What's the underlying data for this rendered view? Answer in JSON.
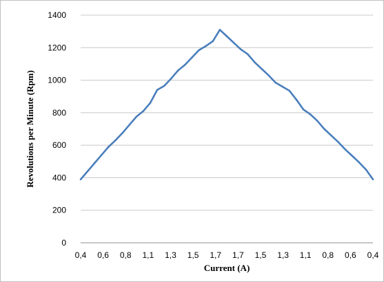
{
  "chart_data": {
    "type": "line",
    "xlabel": "Current (A)",
    "ylabel": "Revolutions per Minute (Rpm)",
    "ylim": [
      0,
      1400
    ],
    "yticks": [
      0,
      200,
      400,
      600,
      800,
      1000,
      1200,
      1400
    ],
    "grid": "horizontal",
    "line_color": "#4a7ebb",
    "x_tick_labels": [
      "0,4",
      "0,6",
      "0,8",
      "1,1",
      "1,3",
      "1,5",
      "1,7",
      "1,7",
      "1,5",
      "1,3",
      "1,1",
      "0,8",
      "0,6",
      "0,4"
    ],
    "series": [
      {
        "values": [
          390,
          440,
          490,
          540,
          590,
          630,
          675,
          725,
          775,
          810,
          860,
          940,
          965,
          1010,
          1060,
          1095,
          1140,
          1185,
          1210,
          1240,
          1310,
          1270,
          1230,
          1190,
          1160,
          1110,
          1070,
          1030,
          985,
          960,
          935,
          880,
          820,
          790,
          750,
          700,
          660,
          620,
          575,
          535,
          495,
          450,
          390
        ]
      }
    ]
  }
}
